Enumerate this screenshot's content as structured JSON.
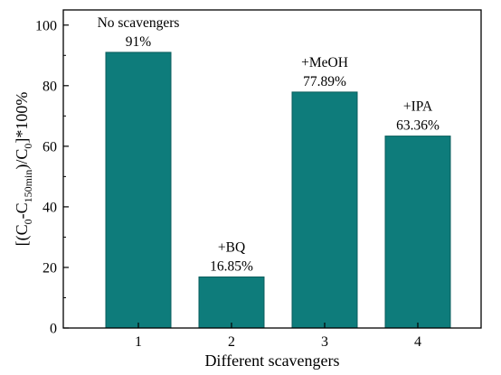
{
  "chart_data": {
    "type": "bar",
    "categories": [
      "1",
      "2",
      "3",
      "4"
    ],
    "values": [
      91,
      16.85,
      77.89,
      63.36
    ],
    "bar_names": [
      "No scavengers",
      "+BQ",
      "+MeOH",
      "+IPA"
    ],
    "value_labels": [
      "91%",
      "16.85%",
      "77.89%",
      "63.36%"
    ],
    "xlabel": "Different scavengers",
    "ylabel": {
      "parts": [
        {
          "text": "[(C",
          "style": "normal"
        },
        {
          "text": "0",
          "style": "sub"
        },
        {
          "text": "-C",
          "style": "normal"
        },
        {
          "text": "150min",
          "style": "sub"
        },
        {
          "text": ")/C",
          "style": "normal"
        },
        {
          "text": "0",
          "style": "sub"
        },
        {
          "text": "]*100%",
          "style": "normal"
        }
      ]
    },
    "ylim": [
      0,
      105
    ],
    "yticks": [
      0,
      20,
      40,
      60,
      80,
      100
    ],
    "grid": false,
    "legend": "none",
    "bar_color": "#0E7C7B"
  }
}
